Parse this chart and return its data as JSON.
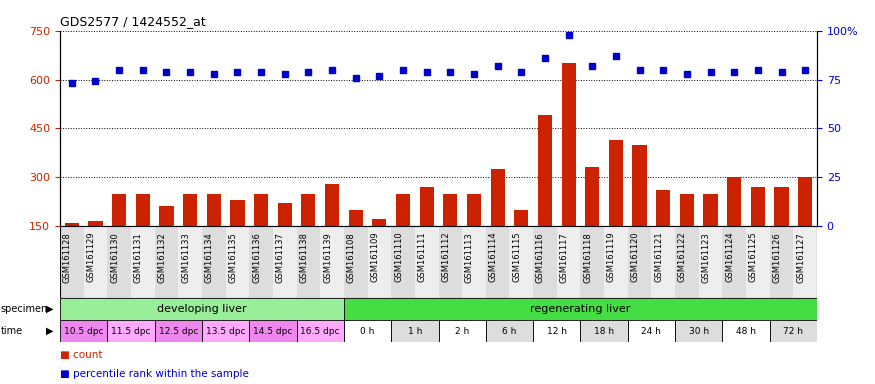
{
  "title": "GDS2577 / 1424552_at",
  "samples": [
    "GSM161128",
    "GSM161129",
    "GSM161130",
    "GSM161131",
    "GSM161132",
    "GSM161133",
    "GSM161134",
    "GSM161135",
    "GSM161136",
    "GSM161137",
    "GSM161138",
    "GSM161139",
    "GSM161108",
    "GSM161109",
    "GSM161110",
    "GSM161111",
    "GSM161112",
    "GSM161113",
    "GSM161114",
    "GSM161115",
    "GSM161116",
    "GSM161117",
    "GSM161118",
    "GSM161119",
    "GSM161120",
    "GSM161121",
    "GSM161122",
    "GSM161123",
    "GSM161124",
    "GSM161125",
    "GSM161126",
    "GSM161127"
  ],
  "counts": [
    158,
    165,
    248,
    248,
    210,
    248,
    248,
    230,
    248,
    220,
    248,
    280,
    200,
    170,
    248,
    270,
    248,
    248,
    325,
    200,
    490,
    650,
    330,
    415,
    400,
    260,
    248,
    248,
    300,
    270,
    270,
    300
  ],
  "percentiles": [
    73,
    74,
    80,
    80,
    79,
    79,
    78,
    79,
    79,
    78,
    79,
    80,
    76,
    77,
    80,
    79,
    79,
    78,
    82,
    79,
    86,
    98,
    82,
    87,
    80,
    80,
    78,
    79,
    79,
    80,
    79,
    80
  ],
  "ylim_left": [
    150,
    750
  ],
  "yticks_left": [
    150,
    300,
    450,
    600,
    750
  ],
  "ylim_right": [
    0,
    100
  ],
  "yticks_right": [
    0,
    25,
    50,
    75,
    100
  ],
  "bar_color": "#cc2200",
  "dot_color": "#0000cc",
  "bg_color": "#ffffff",
  "xticklabel_bg": "#dddddd",
  "specimen_groups": [
    {
      "label": "developing liver",
      "start": 0,
      "end": 12,
      "color": "#99ee99"
    },
    {
      "label": "regenerating liver",
      "start": 12,
      "end": 32,
      "color": "#44dd44"
    }
  ],
  "time_groups": [
    {
      "label": "10.5 dpc",
      "start": 0,
      "end": 2,
      "color": "#ee88ee"
    },
    {
      "label": "11.5 dpc",
      "start": 2,
      "end": 4,
      "color": "#ffaaff"
    },
    {
      "label": "12.5 dpc",
      "start": 4,
      "end": 6,
      "color": "#ee88ee"
    },
    {
      "label": "13.5 dpc",
      "start": 6,
      "end": 8,
      "color": "#ffaaff"
    },
    {
      "label": "14.5 dpc",
      "start": 8,
      "end": 10,
      "color": "#ee88ee"
    },
    {
      "label": "16.5 dpc",
      "start": 10,
      "end": 12,
      "color": "#ffaaff"
    },
    {
      "label": "0 h",
      "start": 12,
      "end": 14,
      "color": "#ffffff"
    },
    {
      "label": "1 h",
      "start": 14,
      "end": 16,
      "color": "#dddddd"
    },
    {
      "label": "2 h",
      "start": 16,
      "end": 18,
      "color": "#ffffff"
    },
    {
      "label": "6 h",
      "start": 18,
      "end": 20,
      "color": "#dddddd"
    },
    {
      "label": "12 h",
      "start": 20,
      "end": 22,
      "color": "#ffffff"
    },
    {
      "label": "18 h",
      "start": 22,
      "end": 24,
      "color": "#dddddd"
    },
    {
      "label": "24 h",
      "start": 24,
      "end": 26,
      "color": "#ffffff"
    },
    {
      "label": "30 h",
      "start": 26,
      "end": 28,
      "color": "#dddddd"
    },
    {
      "label": "48 h",
      "start": 28,
      "end": 30,
      "color": "#ffffff"
    },
    {
      "label": "72 h",
      "start": 30,
      "end": 32,
      "color": "#dddddd"
    }
  ],
  "legend_items": [
    {
      "label": "count",
      "color": "#cc2200"
    },
    {
      "label": "percentile rank within the sample",
      "color": "#0000cc"
    }
  ]
}
